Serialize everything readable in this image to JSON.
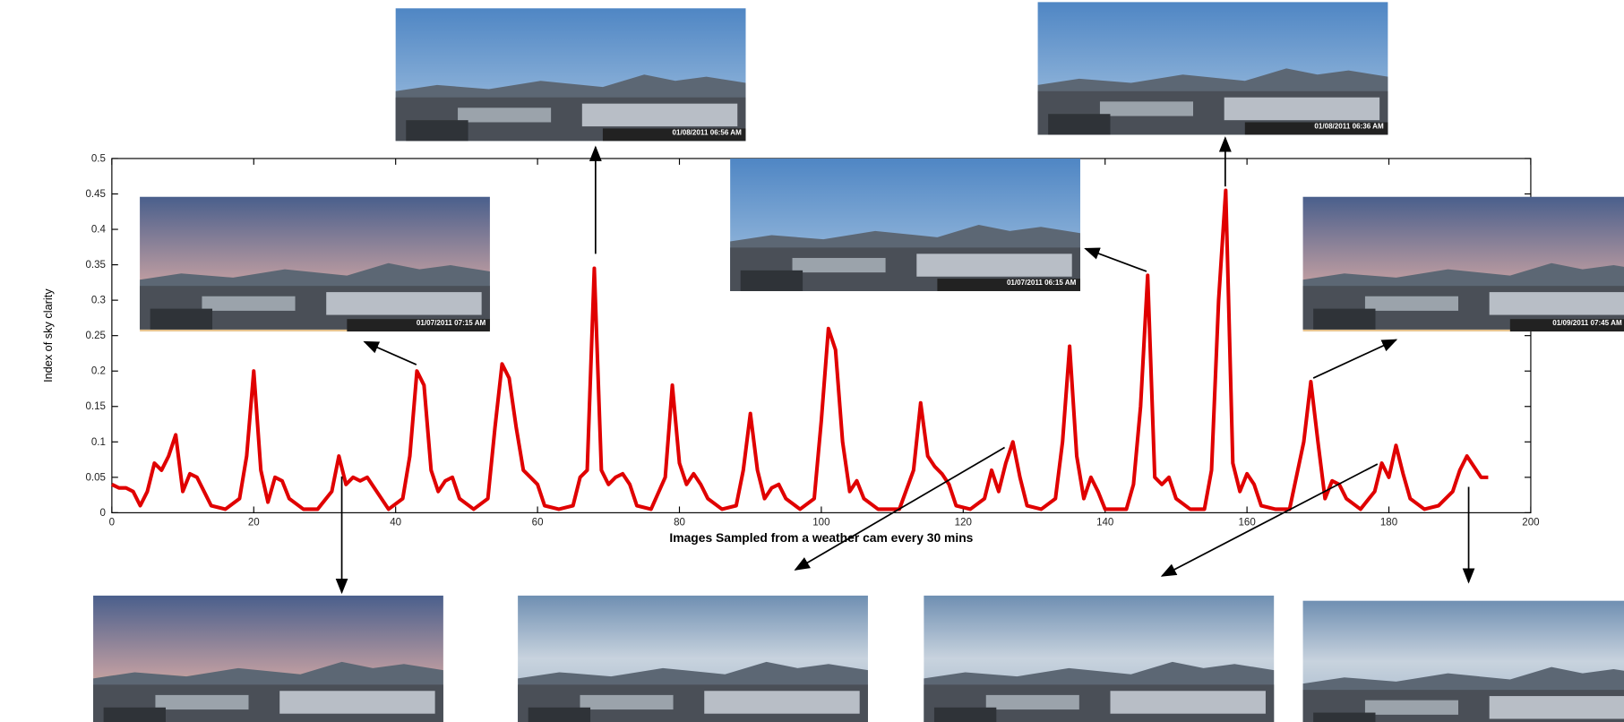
{
  "chart_data": {
    "type": "line",
    "x_label": "Images Sampled from a weather cam every 30 mins",
    "y_label": "Index of sky clarity",
    "xlim": [
      0,
      200
    ],
    "ylim": [
      0,
      0.5
    ],
    "xticks": [
      0,
      20,
      40,
      60,
      80,
      100,
      120,
      140,
      160,
      180,
      200
    ],
    "yticks": [
      0,
      0.05,
      0.1,
      0.15,
      0.2,
      0.25,
      0.3,
      0.35,
      0.4,
      0.45,
      0.5
    ],
    "series": [
      {
        "color": "#e00000",
        "x": [
          0,
          1,
          2,
          3,
          4,
          5,
          6,
          7,
          8,
          9,
          10,
          11,
          12,
          13,
          14,
          16,
          18,
          19,
          20,
          21,
          22,
          23,
          24,
          25,
          27,
          29,
          31,
          32,
          33,
          34,
          35,
          36,
          37,
          39,
          41,
          42,
          43,
          44,
          45,
          46,
          47,
          48,
          49,
          51,
          53,
          54,
          55,
          56,
          57,
          58,
          59,
          60,
          61,
          63,
          65,
          66,
          67,
          68,
          69,
          70,
          71,
          72,
          73,
          74,
          76,
          78,
          79,
          80,
          81,
          82,
          83,
          84,
          86,
          88,
          89,
          90,
          91,
          92,
          93,
          94,
          95,
          97,
          99,
          100,
          101,
          102,
          103,
          104,
          105,
          106,
          108,
          111,
          113,
          114,
          115,
          116,
          117,
          118,
          119,
          121,
          123,
          124,
          125,
          126,
          127,
          128,
          129,
          131,
          133,
          134,
          135,
          136,
          137,
          138,
          139,
          140,
          143,
          144,
          145,
          146,
          147,
          148,
          149,
          150,
          152,
          154,
          155,
          156,
          157,
          158,
          159,
          160,
          161,
          162,
          164,
          166,
          168,
          169,
          170,
          171,
          172,
          173,
          174,
          176,
          178,
          179,
          180,
          181,
          182,
          183,
          185,
          187,
          189,
          190,
          191,
          192,
          193,
          194
        ],
        "values": [
          0.04,
          0.035,
          0.035,
          0.03,
          0.01,
          0.03,
          0.07,
          0.06,
          0.08,
          0.11,
          0.03,
          0.055,
          0.05,
          0.03,
          0.01,
          0.005,
          0.02,
          0.08,
          0.2,
          0.06,
          0.015,
          0.05,
          0.045,
          0.02,
          0.005,
          0.005,
          0.03,
          0.08,
          0.04,
          0.05,
          0.045,
          0.05,
          0.035,
          0.005,
          0.02,
          0.08,
          0.2,
          0.18,
          0.06,
          0.03,
          0.045,
          0.05,
          0.02,
          0.005,
          0.02,
          0.12,
          0.21,
          0.19,
          0.12,
          0.06,
          0.05,
          0.04,
          0.01,
          0.005,
          0.01,
          0.05,
          0.06,
          0.345,
          0.06,
          0.04,
          0.05,
          0.055,
          0.04,
          0.01,
          0.005,
          0.05,
          0.18,
          0.07,
          0.04,
          0.055,
          0.04,
          0.02,
          0.005,
          0.01,
          0.06,
          0.14,
          0.06,
          0.02,
          0.035,
          0.04,
          0.02,
          0.005,
          0.02,
          0.13,
          0.26,
          0.23,
          0.1,
          0.03,
          0.045,
          0.02,
          0.005,
          0.005,
          0.06,
          0.155,
          0.08,
          0.065,
          0.055,
          0.04,
          0.01,
          0.005,
          0.02,
          0.06,
          0.03,
          0.07,
          0.1,
          0.05,
          0.01,
          0.005,
          0.02,
          0.1,
          0.235,
          0.08,
          0.02,
          0.05,
          0.03,
          0.005,
          0.005,
          0.04,
          0.15,
          0.335,
          0.05,
          0.04,
          0.05,
          0.02,
          0.005,
          0.005,
          0.06,
          0.3,
          0.455,
          0.07,
          0.03,
          0.055,
          0.04,
          0.01,
          0.005,
          0.005,
          0.1,
          0.185,
          0.1,
          0.02,
          0.045,
          0.04,
          0.02,
          0.005,
          0.03,
          0.07,
          0.05,
          0.095,
          0.055,
          0.02,
          0.005,
          0.01,
          0.03,
          0.06,
          0.08,
          0.065,
          0.05,
          0.05
        ]
      }
    ]
  },
  "photo_stamps": [
    "01/08/2011 06:56 AM",
    "01/08/2011 06:36 AM",
    "01/07/2011 06:15 AM",
    "01/07/2011 07:15 AM",
    "01/09/2011 07:45 AM"
  ]
}
